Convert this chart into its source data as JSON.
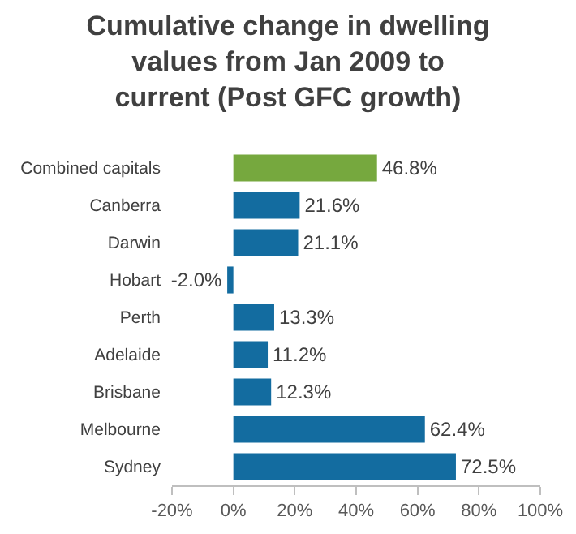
{
  "chart_data": {
    "type": "bar",
    "orientation": "horizontal",
    "title": "Cumulative change in dwelling values from Jan 2009 to current (Post GFC growth)",
    "categories": [
      "Combined capitals",
      "Canberra",
      "Darwin",
      "Hobart",
      "Perth",
      "Adelaide",
      "Brisbane",
      "Melbourne",
      "Sydney"
    ],
    "values": [
      46.8,
      21.6,
      21.1,
      -2.0,
      13.3,
      11.2,
      12.3,
      62.4,
      72.5
    ],
    "value_labels": [
      "46.8%",
      "21.6%",
      "21.1%",
      "-2.0%",
      "13.3%",
      "11.2%",
      "12.3%",
      "62.4%",
      "72.5%"
    ],
    "colors": [
      "#76a83e",
      "#136ca0",
      "#136ca0",
      "#136ca0",
      "#136ca0",
      "#136ca0",
      "#136ca0",
      "#136ca0",
      "#136ca0"
    ],
    "xlim": [
      -20,
      100
    ],
    "xticks": [
      {
        "value": -20,
        "label": "-20%"
      },
      {
        "value": 0,
        "label": "0%"
      },
      {
        "value": 20,
        "label": "20%"
      },
      {
        "value": 40,
        "label": "40%"
      },
      {
        "value": 60,
        "label": "60%"
      },
      {
        "value": 80,
        "label": "80%"
      },
      {
        "value": 100,
        "label": "100%"
      }
    ],
    "grid": false,
    "legend": false
  }
}
